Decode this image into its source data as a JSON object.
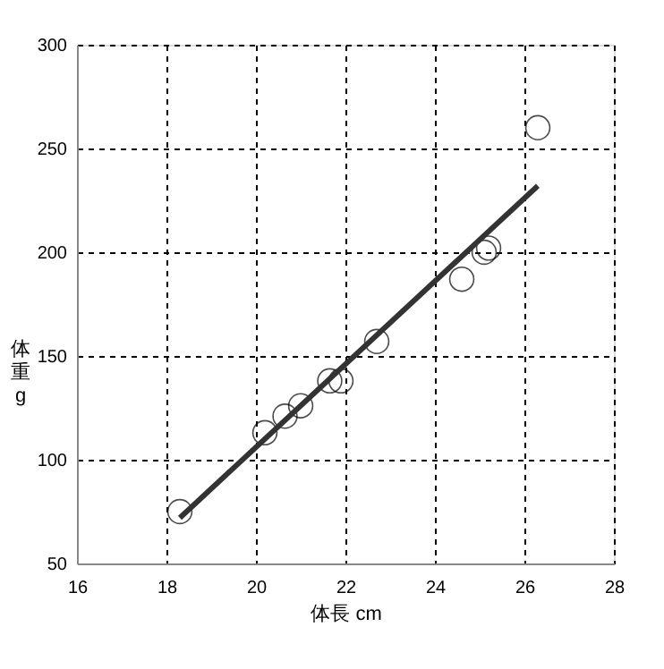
{
  "chart_data": {
    "type": "scatter",
    "xlabel": "体長 cm",
    "ylabel": "体重 g",
    "xlim": [
      16,
      28
    ],
    "xticks": [
      16,
      18,
      20,
      22,
      24,
      26,
      28
    ],
    "ylim": [
      50,
      300
    ],
    "yticks": [
      50,
      100,
      150,
      200,
      250,
      300
    ],
    "grid": true,
    "series": [
      {
        "marker": "circle",
        "color": "#000000",
        "x": [
          18.3,
          20.2,
          20.65,
          21.0,
          21.65,
          21.9,
          22.7,
          24.6,
          25.1,
          25.2,
          26.3
        ],
        "values": [
          75,
          113,
          121,
          126,
          138,
          138,
          157,
          187,
          200,
          202,
          260
        ]
      },
      {
        "type": "line",
        "color": "#333333",
        "line_style": "solid",
        "x": [
          18.3,
          26.3
        ],
        "values": [
          72,
          232
        ]
      }
    ]
  }
}
